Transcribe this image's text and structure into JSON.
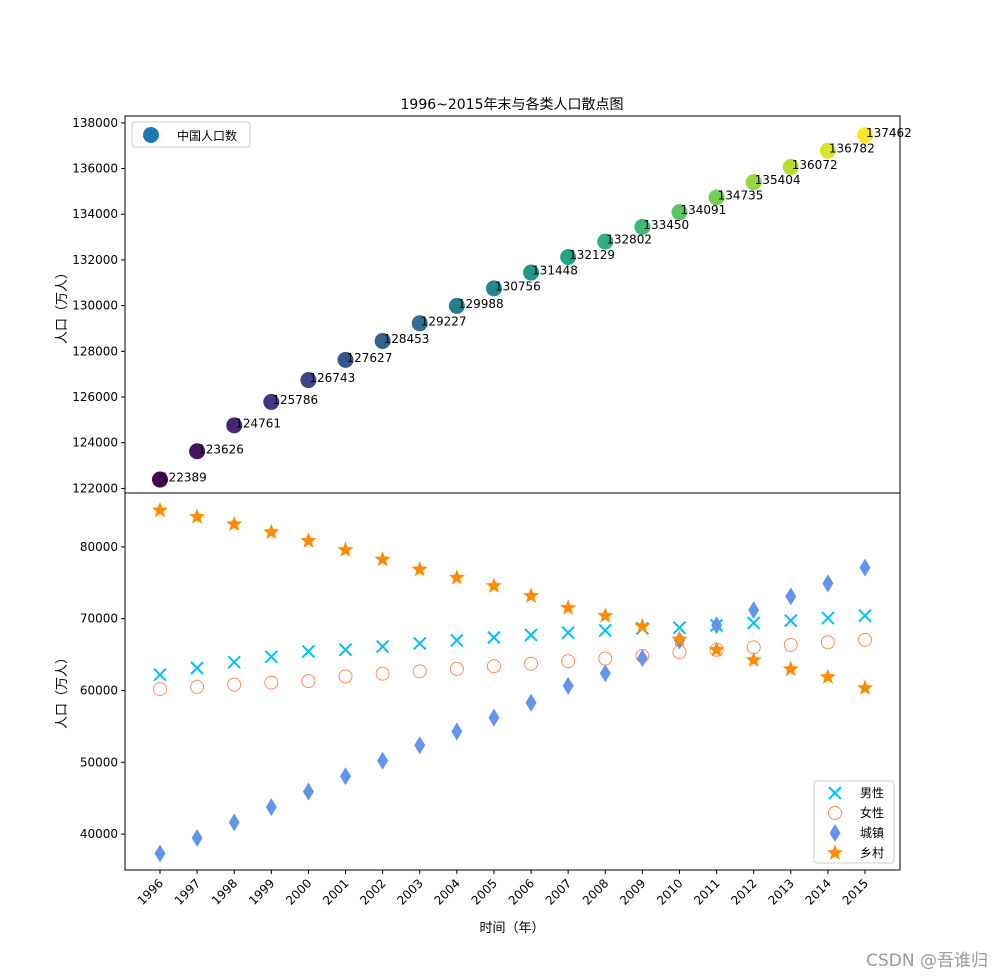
{
  "title": "1996~2015年末与各类人口散点图",
  "watermark": "CSDN @吾谁归",
  "chart_data": [
    {
      "type": "scatter",
      "ylabel": "人口（万人）",
      "ylim": [
        121800,
        138300
      ],
      "yticks": [
        122000,
        124000,
        126000,
        128000,
        130000,
        132000,
        134000,
        136000,
        138000
      ],
      "legend": {
        "position": "top-left",
        "entries": [
          {
            "label": "中国人口数",
            "color": "#1f77b4"
          }
        ]
      },
      "x": [
        1996,
        1997,
        1998,
        1999,
        2000,
        2001,
        2002,
        2003,
        2004,
        2005,
        2006,
        2007,
        2008,
        2009,
        2010,
        2011,
        2012,
        2013,
        2014,
        2015
      ],
      "series": [
        {
          "name": "中国人口数",
          "colormap": "viridis",
          "values": [
            122389,
            123626,
            124761,
            125786,
            126743,
            127627,
            128453,
            129227,
            129988,
            130756,
            131448,
            132129,
            132802,
            133450,
            134091,
            134735,
            135404,
            136072,
            136782,
            137462
          ]
        }
      ],
      "data_labels": [
        "122389",
        "123626",
        "124761",
        "125786",
        "126743",
        "127627",
        "128453",
        "129227",
        "129988",
        "130756",
        "131448",
        "132129",
        "132802",
        "133450",
        "134091",
        "134735",
        "135404",
        "136072",
        "136782",
        "137462"
      ]
    },
    {
      "type": "scatter",
      "xlabel": "时间（年）",
      "ylabel": "人口（万人）",
      "ylim": [
        35000,
        87500
      ],
      "yticks": [
        40000,
        50000,
        60000,
        70000,
        80000
      ],
      "legend_position": "bottom-right",
      "categories": [
        "1996",
        "1997",
        "1998",
        "1999",
        "2000",
        "2001",
        "2002",
        "2003",
        "2004",
        "2005",
        "2006",
        "2007",
        "2008",
        "2009",
        "2010",
        "2011",
        "2012",
        "2013",
        "2014",
        "2015"
      ],
      "series": [
        {
          "name": "男性",
          "marker": "x",
          "color": "#00bfff",
          "values": [
            62200,
            63131,
            63940,
            64692,
            65437,
            65672,
            66115,
            66556,
            66976,
            67375,
            67728,
            68048,
            68357,
            68647,
            68748,
            69068,
            69395,
            69728,
            70079,
            70414
          ]
        },
        {
          "name": "女性",
          "marker": "circle-open",
          "color": "#ff7f50",
          "values": [
            60189,
            60495,
            60821,
            61094,
            61306,
            61955,
            62338,
            62671,
            63012,
            63381,
            63720,
            64081,
            64445,
            64803,
            65343,
            65667,
            66009,
            66344,
            66703,
            67048
          ]
        },
        {
          "name": "城镇",
          "marker": "diamond",
          "color": "#6495ed",
          "values": [
            37304,
            39449,
            41608,
            43748,
            45906,
            48064,
            50212,
            52376,
            54283,
            56212,
            58288,
            60633,
            62403,
            64512,
            66978,
            69079,
            71182,
            73111,
            74916,
            77116
          ]
        },
        {
          "name": "乡村",
          "marker": "star",
          "color": "#ff8c00",
          "values": [
            85085,
            84177,
            83153,
            82038,
            80837,
            79563,
            78241,
            76851,
            75705,
            74544,
            73160,
            71496,
            70399,
            68938,
            67113,
            65656,
            64222,
            62961,
            61866,
            60346
          ]
        }
      ]
    }
  ]
}
